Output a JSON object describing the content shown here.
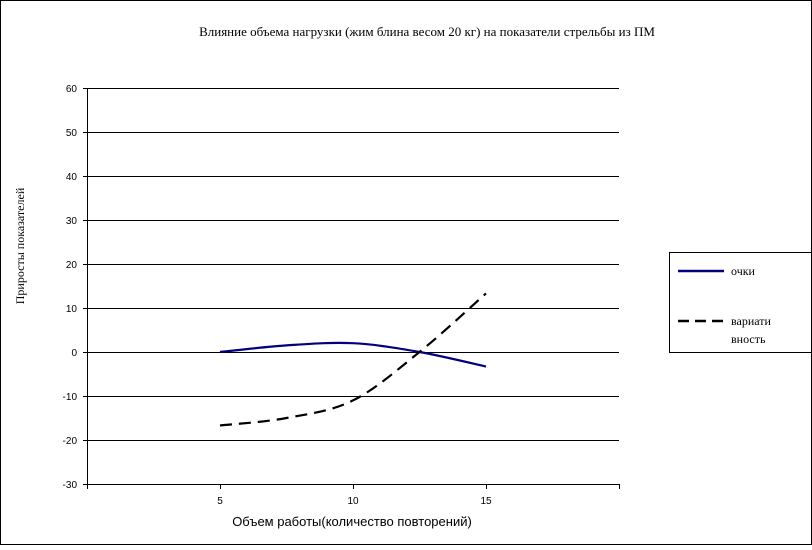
{
  "chart_data": {
    "type": "line",
    "title": "Влияние объема нагрузки (жим блина весом 20 кг) на показатели стрельбы из ПМ",
    "xlabel": "Объем работы(количество повторений)",
    "ylabel": "Приросты показателей",
    "ylim": [
      -30,
      60
    ],
    "yticks": [
      60,
      50,
      40,
      30,
      20,
      10,
      0,
      -10,
      -20,
      -30
    ],
    "xlim": [
      0,
      20
    ],
    "xticks": [
      5,
      10,
      15
    ],
    "grid": "horizontal",
    "legend_position": "right",
    "series": [
      {
        "name": "очки",
        "color": "#000080",
        "style": "solid",
        "x": [
          5,
          7.5,
          10,
          12.5,
          15
        ],
        "y": [
          0,
          1.5,
          2,
          0,
          -3.3
        ]
      },
      {
        "name": "вариативность",
        "legend_lines": [
          "вариати",
          "вность"
        ],
        "color": "#000000",
        "style": "dashed",
        "x": [
          5,
          7.5,
          10,
          12.5,
          15
        ],
        "y": [
          -16.7,
          -15,
          -11,
          0,
          13.3
        ]
      }
    ]
  }
}
